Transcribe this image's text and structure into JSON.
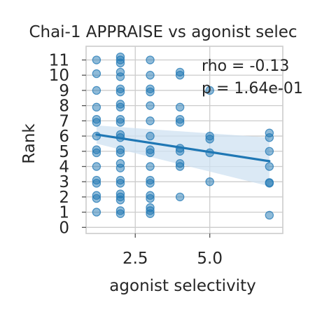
{
  "chart_data": {
    "type": "scatter",
    "title": "Chai-1 APPRAISE vs agonist selec",
    "xlabel": "agonist selectivity",
    "ylabel": "Rank",
    "xlim": [
      0.85,
      7.45
    ],
    "ylim": [
      -0.4,
      11.9
    ],
    "x_ticks": [
      2.5,
      5.0
    ],
    "x_tick_labels": [
      "2.5",
      "5.0"
    ],
    "y_ticks": [
      0,
      1,
      2,
      3,
      4,
      5,
      6,
      7,
      8,
      9,
      10,
      11
    ],
    "y_tick_labels": [
      "0",
      "1",
      "2",
      "3",
      "4",
      "5",
      "6",
      "7",
      "8",
      "9",
      "10",
      "11"
    ],
    "grid": true,
    "annotation": {
      "rho": "rho = -0.13",
      "p": "p = 1.64e-01"
    },
    "regression": {
      "x": [
        1.2,
        7.0
      ],
      "y": [
        6.1,
        4.35
      ],
      "band_upper": [
        6.7,
        5.9
      ],
      "band_lower": [
        5.5,
        2.7
      ]
    },
    "points": [
      {
        "x": 1.2,
        "y": 11.0
      },
      {
        "x": 1.2,
        "y": 10.1
      },
      {
        "x": 1.2,
        "y": 9.0
      },
      {
        "x": 1.2,
        "y": 7.9
      },
      {
        "x": 1.2,
        "y": 7.1
      },
      {
        "x": 1.2,
        "y": 6.9
      },
      {
        "x": 1.2,
        "y": 6.0
      },
      {
        "x": 1.2,
        "y": 5.1
      },
      {
        "x": 1.2,
        "y": 4.9
      },
      {
        "x": 1.2,
        "y": 4.0
      },
      {
        "x": 1.2,
        "y": 3.1
      },
      {
        "x": 1.2,
        "y": 2.9
      },
      {
        "x": 1.2,
        "y": 2.1
      },
      {
        "x": 1.2,
        "y": 1.9
      },
      {
        "x": 1.2,
        "y": 1.0
      },
      {
        "x": 2.0,
        "y": 11.2
      },
      {
        "x": 2.0,
        "y": 11.0
      },
      {
        "x": 2.0,
        "y": 10.8
      },
      {
        "x": 2.0,
        "y": 10.2
      },
      {
        "x": 2.0,
        "y": 9.9
      },
      {
        "x": 2.0,
        "y": 9.1
      },
      {
        "x": 2.0,
        "y": 8.9
      },
      {
        "x": 2.0,
        "y": 8.1
      },
      {
        "x": 2.0,
        "y": 7.9
      },
      {
        "x": 2.0,
        "y": 7.1
      },
      {
        "x": 2.0,
        "y": 6.9
      },
      {
        "x": 2.0,
        "y": 6.1
      },
      {
        "x": 2.0,
        "y": 5.9
      },
      {
        "x": 2.0,
        "y": 5.1
      },
      {
        "x": 2.0,
        "y": 4.9
      },
      {
        "x": 2.0,
        "y": 4.2
      },
      {
        "x": 2.0,
        "y": 3.9
      },
      {
        "x": 2.0,
        "y": 3.1
      },
      {
        "x": 2.0,
        "y": 2.9
      },
      {
        "x": 2.0,
        "y": 2.2
      },
      {
        "x": 2.0,
        "y": 2.0
      },
      {
        "x": 2.0,
        "y": 1.8
      },
      {
        "x": 2.0,
        "y": 1.1
      },
      {
        "x": 2.0,
        "y": 0.9
      },
      {
        "x": 3.0,
        "y": 11.0
      },
      {
        "x": 3.0,
        "y": 10.0
      },
      {
        "x": 3.0,
        "y": 9.1
      },
      {
        "x": 3.0,
        "y": 8.9
      },
      {
        "x": 3.0,
        "y": 8.0
      },
      {
        "x": 3.0,
        "y": 7.0
      },
      {
        "x": 3.0,
        "y": 6.0
      },
      {
        "x": 3.0,
        "y": 5.1
      },
      {
        "x": 3.0,
        "y": 4.9
      },
      {
        "x": 3.0,
        "y": 4.0
      },
      {
        "x": 3.0,
        "y": 3.1
      },
      {
        "x": 3.0,
        "y": 2.9
      },
      {
        "x": 3.0,
        "y": 2.1
      },
      {
        "x": 3.0,
        "y": 1.9
      },
      {
        "x": 3.0,
        "y": 1.3
      },
      {
        "x": 3.0,
        "y": 1.1
      },
      {
        "x": 3.0,
        "y": 0.9
      },
      {
        "x": 4.0,
        "y": 10.2
      },
      {
        "x": 4.0,
        "y": 10.0
      },
      {
        "x": 4.0,
        "y": 7.9
      },
      {
        "x": 4.0,
        "y": 7.1
      },
      {
        "x": 4.0,
        "y": 6.9
      },
      {
        "x": 4.0,
        "y": 5.2
      },
      {
        "x": 4.0,
        "y": 5.0
      },
      {
        "x": 4.0,
        "y": 4.2
      },
      {
        "x": 4.0,
        "y": 4.0
      },
      {
        "x": 4.0,
        "y": 2.0
      },
      {
        "x": 5.0,
        "y": 9.0
      },
      {
        "x": 5.0,
        "y": 6.0
      },
      {
        "x": 5.0,
        "y": 5.8
      },
      {
        "x": 5.0,
        "y": 4.9
      },
      {
        "x": 5.0,
        "y": 3.0
      },
      {
        "x": 7.0,
        "y": 6.2
      },
      {
        "x": 7.0,
        "y": 5.9
      },
      {
        "x": 7.0,
        "y": 5.0
      },
      {
        "x": 7.0,
        "y": 4.0
      },
      {
        "x": 7.0,
        "y": 2.95
      },
      {
        "x": 7.0,
        "y": 2.9
      },
      {
        "x": 7.0,
        "y": 0.8
      }
    ],
    "colors": {
      "point": "#1f77b4",
      "line": "#1f77b4",
      "band": "#cfe1f2",
      "grid": "#cccccc",
      "frame": "#cccccc"
    }
  }
}
